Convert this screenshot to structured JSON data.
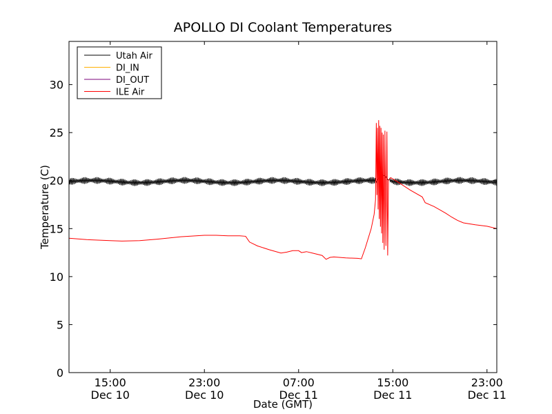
{
  "chart_data": {
    "type": "line",
    "title": "APOLLO DI Coolant Temperatures",
    "xlabel": "Date (GMT)",
    "ylabel": "Temperature (C)",
    "x_unit": "hours",
    "xlim": [
      "Dec 10 11:30",
      "Dec 11 23:50"
    ],
    "ylim": [
      0,
      34.5
    ],
    "yticks": [
      0,
      5,
      10,
      15,
      20,
      25,
      30
    ],
    "xticks": [
      {
        "time": "Dec 10 15:00",
        "line1": "15:00",
        "line2": "Dec 10"
      },
      {
        "time": "Dec 10 23:00",
        "line1": "23:00",
        "line2": "Dec 10"
      },
      {
        "time": "Dec 11 07:00",
        "line1": "07:00",
        "line2": "Dec 11"
      },
      {
        "time": "Dec 11 15:00",
        "line1": "15:00",
        "line2": "Dec 11"
      },
      {
        "time": "Dec 11 23:00",
        "line1": "23:00",
        "line2": "Dec 11"
      }
    ],
    "grid": false,
    "legend_position": "top-left",
    "series": [
      {
        "name": "Utah Air",
        "color": "#000000",
        "style": "oscillating",
        "points": [
          [
            "Dec 10 11:30",
            19.9
          ],
          [
            "Dec 10 18:00",
            19.9
          ],
          [
            "Dec 11 00:00",
            19.9
          ],
          [
            "Dec 11 06:00",
            19.9
          ],
          [
            "Dec 11 12:00",
            19.9
          ],
          [
            "Dec 11 13:35",
            19.9
          ],
          [
            "Dec 11 13:50",
            20.3
          ],
          [
            "Dec 11 14:05",
            20.6
          ],
          [
            "Dec 11 14:20",
            20.5
          ],
          [
            "Dec 11 14:35",
            20.1
          ],
          [
            "Dec 11 15:00",
            19.9
          ],
          [
            "Dec 11 23:50",
            19.9
          ]
        ],
        "oscillation_amplitude": 0.35,
        "oscillating_ranges": [
          [
            "Dec 10 11:30",
            "Dec 11 13:35"
          ],
          [
            "Dec 11 14:45",
            "Dec 11 23:50"
          ]
        ]
      },
      {
        "name": "DI_IN",
        "color": "#ffb000",
        "points": []
      },
      {
        "name": "DI_OUT",
        "color": "#7b007b",
        "points": []
      },
      {
        "name": "ILE Air",
        "color": "#ff0000",
        "points": [
          [
            "Dec 10 11:30",
            14.0
          ],
          [
            "Dec 10 13:00",
            13.85
          ],
          [
            "Dec 10 15:00",
            13.75
          ],
          [
            "Dec 10 16:00",
            13.7
          ],
          [
            "Dec 10 17:30",
            13.75
          ],
          [
            "Dec 10 19:00",
            13.9
          ],
          [
            "Dec 10 21:00",
            14.15
          ],
          [
            "Dec 10 23:00",
            14.3
          ],
          [
            "Dec 11 00:00",
            14.3
          ],
          [
            "Dec 11 01:00",
            14.25
          ],
          [
            "Dec 11 02:00",
            14.25
          ],
          [
            "Dec 11 02:30",
            14.2
          ],
          [
            "Dec 11 02:50",
            13.6
          ],
          [
            "Dec 11 03:30",
            13.2
          ],
          [
            "Dec 11 04:30",
            12.8
          ],
          [
            "Dec 11 05:30",
            12.45
          ],
          [
            "Dec 11 06:00",
            12.55
          ],
          [
            "Dec 11 06:30",
            12.7
          ],
          [
            "Dec 11 07:00",
            12.7
          ],
          [
            "Dec 11 07:15",
            12.5
          ],
          [
            "Dec 11 07:40",
            12.6
          ],
          [
            "Dec 11 08:10",
            12.45
          ],
          [
            "Dec 11 09:00",
            12.2
          ],
          [
            "Dec 11 09:20",
            11.8
          ],
          [
            "Dec 11 09:40",
            12.0
          ],
          [
            "Dec 11 10:00",
            12.05
          ],
          [
            "Dec 11 11:00",
            11.95
          ],
          [
            "Dec 11 12:00",
            11.9
          ],
          [
            "Dec 11 12:20",
            11.85
          ],
          [
            "Dec 11 12:40",
            13.0
          ],
          [
            "Dec 11 13:10",
            15.0
          ],
          [
            "Dec 11 13:25",
            16.5
          ],
          [
            "Dec 11 13:32",
            18.0
          ],
          [
            "Dec 11 13:36",
            26.0
          ],
          [
            "Dec 11 13:39",
            18.5
          ],
          [
            "Dec 11 13:42",
            25.5
          ],
          [
            "Dec 11 13:45",
            17.0
          ],
          [
            "Dec 11 13:48",
            26.3
          ],
          [
            "Dec 11 13:51",
            16.0
          ],
          [
            "Dec 11 13:54",
            25.7
          ],
          [
            "Dec 11 13:57",
            15.2
          ],
          [
            "Dec 11 14:00",
            25.5
          ],
          [
            "Dec 11 14:03",
            14.5
          ],
          [
            "Dec 11 14:06",
            25.0
          ],
          [
            "Dec 11 14:09",
            13.5
          ],
          [
            "Dec 11 14:12",
            24.8
          ],
          [
            "Dec 11 14:16",
            12.8
          ],
          [
            "Dec 11 14:20",
            25.2
          ],
          [
            "Dec 11 14:25",
            13.2
          ],
          [
            "Dec 11 14:30",
            25.1
          ],
          [
            "Dec 11 14:34",
            12.2
          ],
          [
            "Dec 11 14:38",
            20.0
          ],
          [
            "Dec 11 14:50",
            20.3
          ],
          [
            "Dec 11 15:30",
            19.8
          ],
          [
            "Dec 11 16:30",
            19.0
          ],
          [
            "Dec 11 17:30",
            18.3
          ],
          [
            "Dec 11 17:45",
            17.7
          ],
          [
            "Dec 11 18:30",
            17.3
          ],
          [
            "Dec 11 19:30",
            16.6
          ],
          [
            "Dec 11 20:00",
            16.2
          ],
          [
            "Dec 11 20:30",
            15.85
          ],
          [
            "Dec 11 21:00",
            15.6
          ],
          [
            "Dec 11 22:00",
            15.4
          ],
          [
            "Dec 11 23:00",
            15.25
          ],
          [
            "Dec 11 23:50",
            15.0
          ]
        ]
      }
    ]
  }
}
